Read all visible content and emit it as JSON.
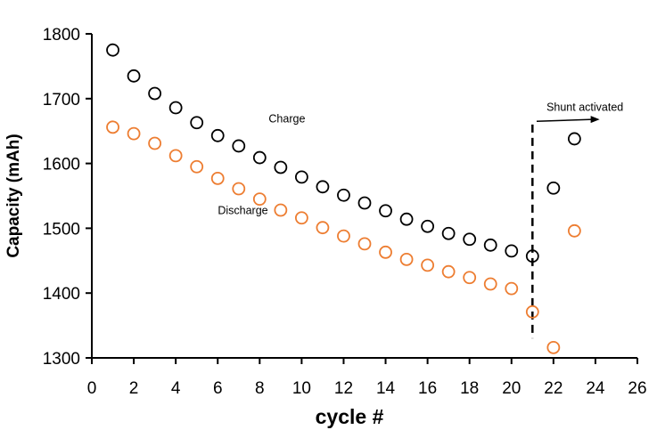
{
  "chart_data": {
    "type": "scatter",
    "title": "",
    "xlabel": "cycle #",
    "ylabel": "Capacity (mAh)",
    "xlim": [
      0,
      26
    ],
    "ylim": [
      1300,
      1800
    ],
    "xticks": [
      0,
      2,
      4,
      6,
      8,
      10,
      12,
      14,
      16,
      18,
      20,
      22,
      24,
      26
    ],
    "yticks": [
      1300,
      1400,
      1500,
      1600,
      1700,
      1800
    ],
    "grid": false,
    "series": [
      {
        "name": "Charge",
        "color": "#000000",
        "x": [
          1,
          2,
          3,
          4,
          5,
          6,
          7,
          8,
          9,
          10,
          11,
          12,
          13,
          14,
          15,
          16,
          17,
          18,
          19,
          20,
          21,
          22,
          23
        ],
        "values": [
          1775,
          1735,
          1708,
          1686,
          1663,
          1643,
          1627,
          1609,
          1594,
          1579,
          1564,
          1551,
          1539,
          1527,
          1514,
          1503,
          1492,
          1483,
          1474,
          1465,
          1457,
          1562,
          1638
        ]
      },
      {
        "name": "Discharge",
        "color": "#ED7D31",
        "x": [
          1,
          2,
          3,
          4,
          5,
          6,
          7,
          8,
          9,
          10,
          11,
          12,
          13,
          14,
          15,
          16,
          17,
          18,
          19,
          20,
          21,
          22,
          23
        ],
        "values": [
          1656,
          1646,
          1631,
          1612,
          1595,
          1577,
          1561,
          1545,
          1528,
          1516,
          1501,
          1488,
          1476,
          1463,
          1452,
          1443,
          1433,
          1424,
          1414,
          1407,
          1371,
          1316,
          1496
        ]
      }
    ],
    "annotations": [
      {
        "text": "Charge",
        "x": 9.3,
        "y": 1663
      },
      {
        "text": "Discharge",
        "x": 7.2,
        "y": 1522
      },
      {
        "text": "Shunt activated",
        "x": 23.5,
        "y": 1681
      }
    ],
    "vline": {
      "x": 21,
      "from": 1330,
      "to": 1660,
      "style": "dashed"
    },
    "arrow": {
      "from": [
        21.2,
        1665
      ],
      "to": [
        24.2,
        1668
      ]
    }
  }
}
